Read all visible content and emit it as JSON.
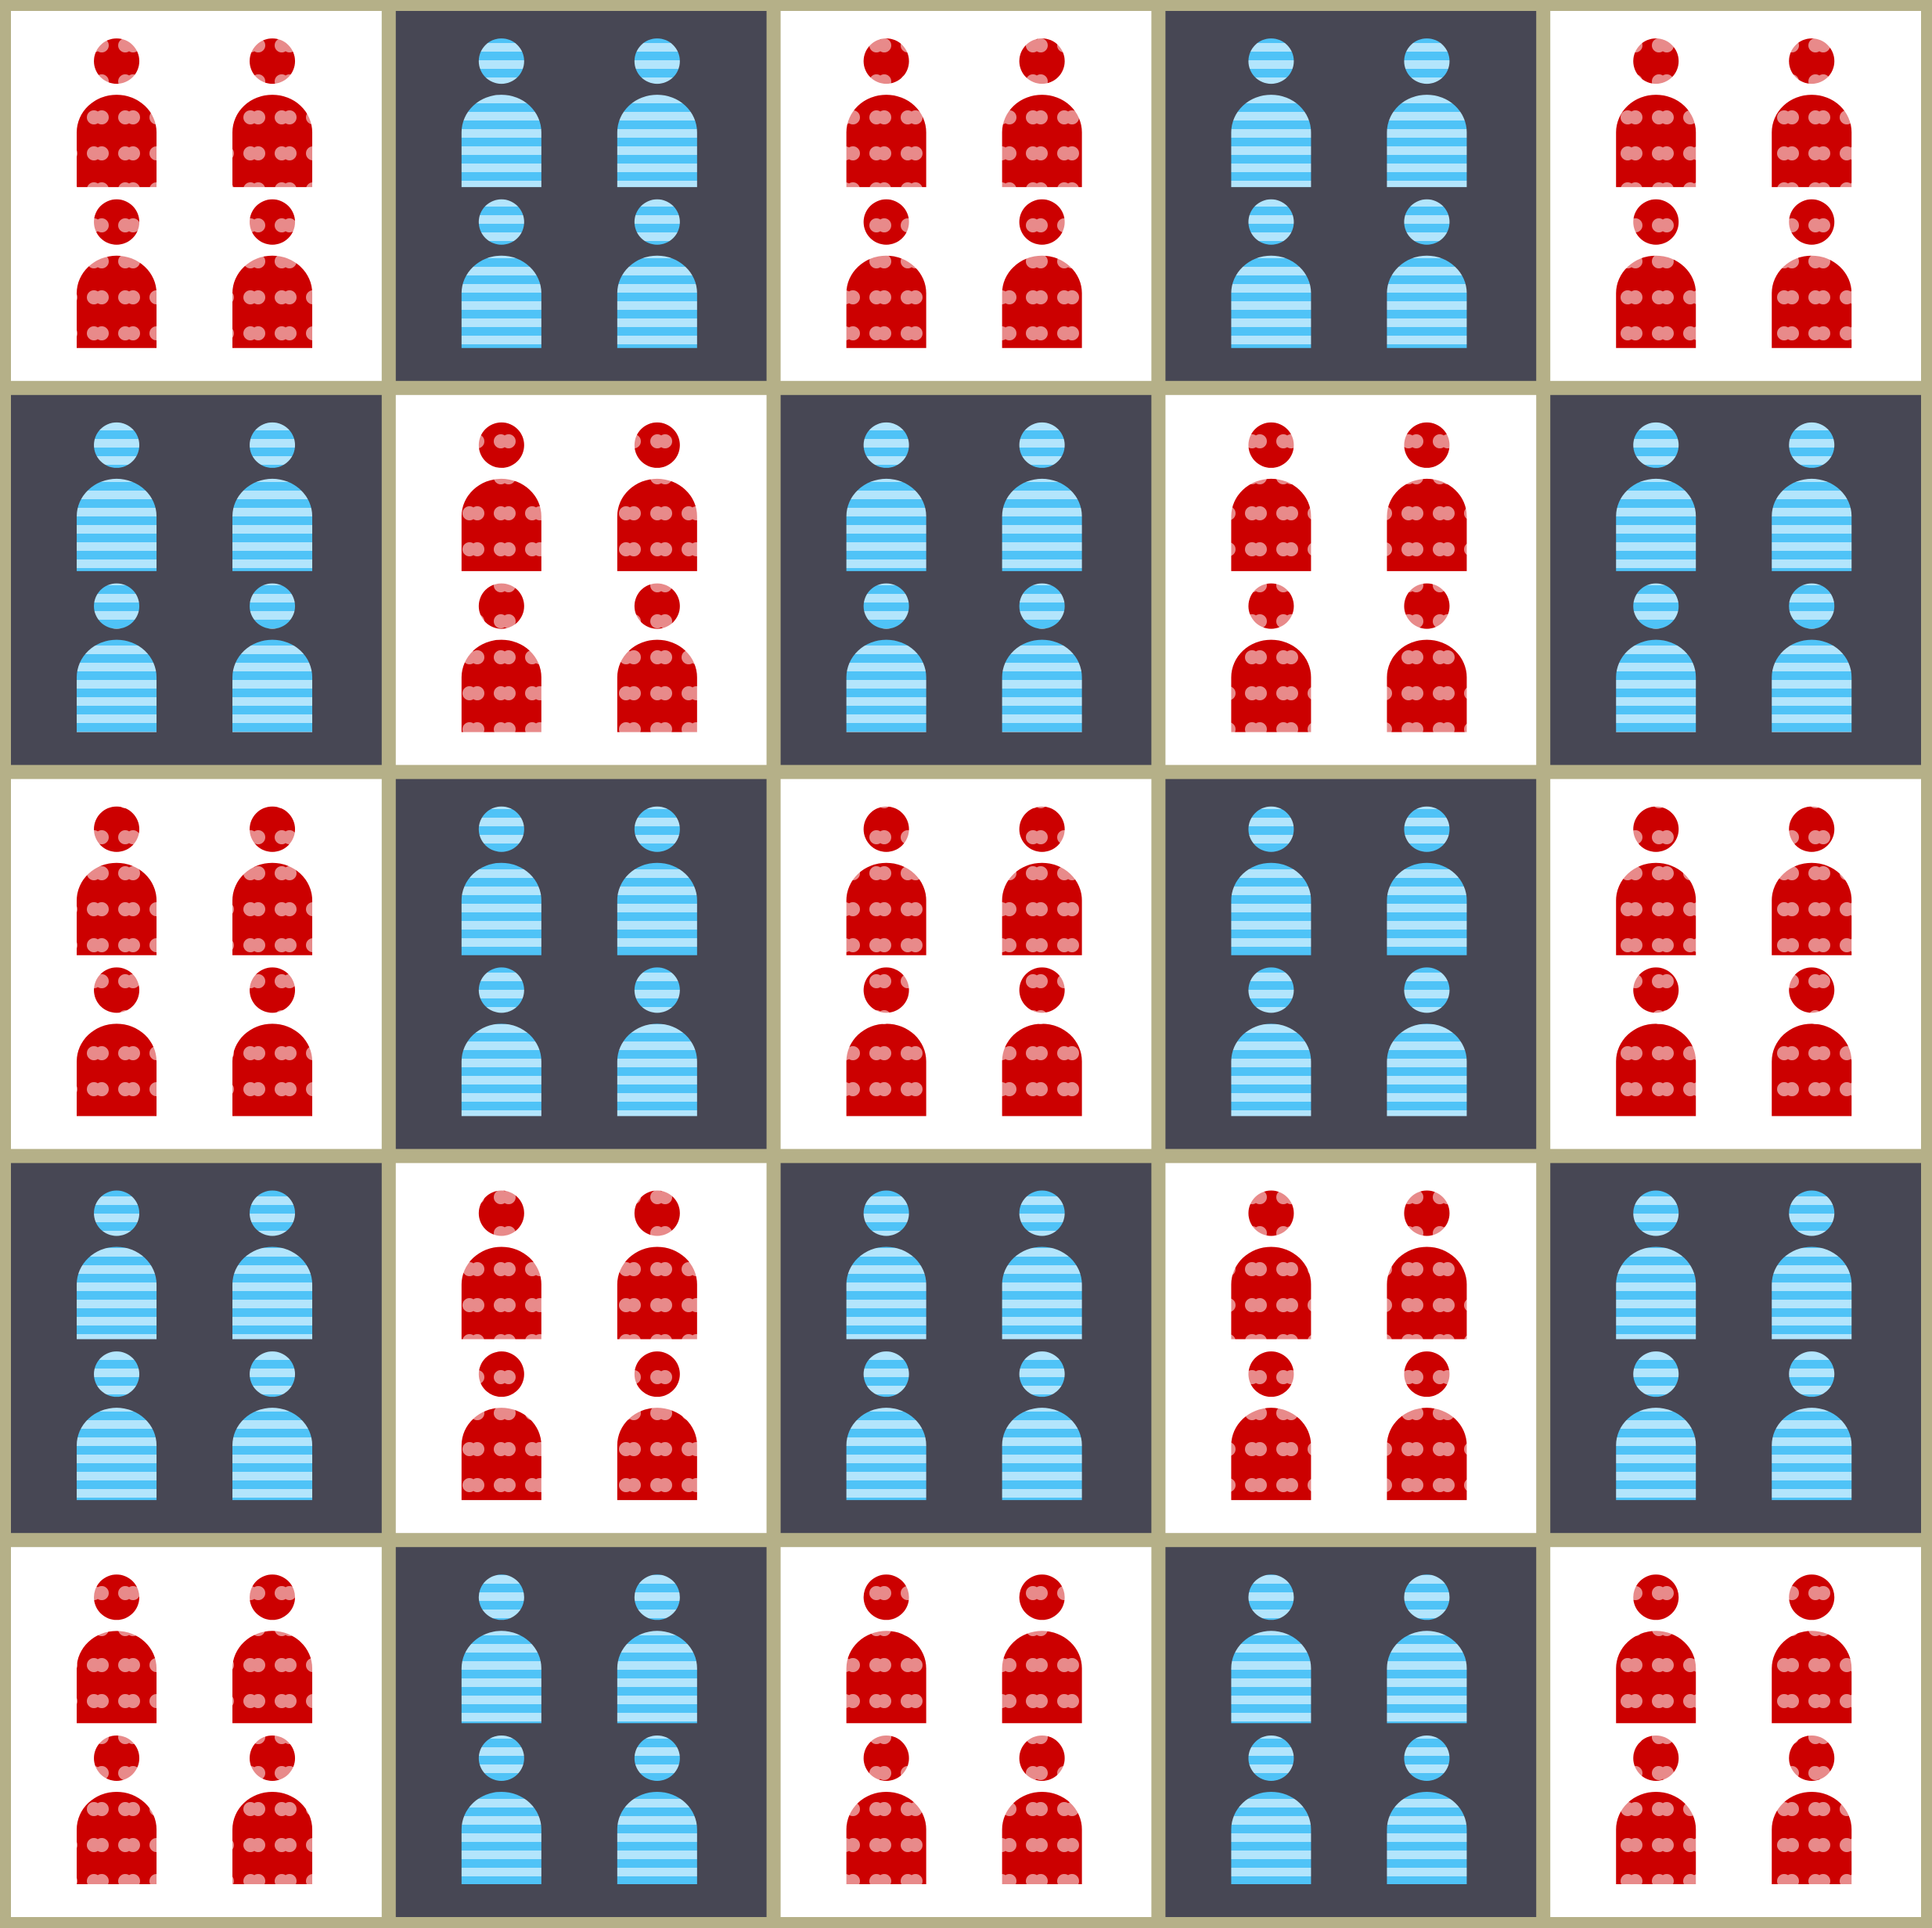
{
  "board": {
    "rows": 5,
    "cols": 5,
    "figures_per_cell": 4,
    "pattern": [
      [
        "red",
        "blue",
        "red",
        "blue",
        "red"
      ],
      [
        "blue",
        "red",
        "blue",
        "red",
        "blue"
      ],
      [
        "red",
        "blue",
        "red",
        "blue",
        "red"
      ],
      [
        "blue",
        "red",
        "blue",
        "red",
        "blue"
      ],
      [
        "red",
        "blue",
        "red",
        "blue",
        "red"
      ]
    ]
  },
  "colors": {
    "border": "#b5b088",
    "cell_light": "#ffffff",
    "cell_dark": "#474754",
    "red_figure": "#cc0000",
    "red_dot": "#e88a8a",
    "blue_figure": "#4fc3f7",
    "blue_stripe": "#b3e5fc"
  },
  "icons": {
    "red": "red-polka-dot-person-icon",
    "blue": "blue-striped-person-icon"
  }
}
